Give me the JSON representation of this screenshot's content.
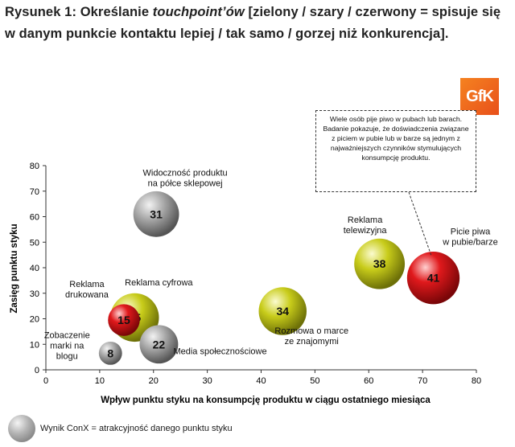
{
  "heading": {
    "prefix": "Rysunek 1: Określanie ",
    "italic": "touchpoint’ów",
    "suffix": " [zielony / szary / czerwony = spisuje się w danym punkcie kontaktu lepiej / tak samo / gorzej niż konkurencja]."
  },
  "logo": {
    "text": "GfK"
  },
  "callout": {
    "text": "Wiele osób pije piwo w pubach lub barach. Badanie pokazuje, że doświadczenia związane z piciem w pubie lub w barze są jednym z najważniejszych czynników stymulujących konsumpcję produktu."
  },
  "legend": {
    "text": "Wynik ConX = atrakcyjność danego punktu styku"
  },
  "colors": {
    "green": "#c8cc1a",
    "grey": "#8a8a8a",
    "red": "#e0191c"
  },
  "chart_data": {
    "type": "scatter",
    "xlabel": "Wpływ punktu styku na konsumpcję produktu w ciągu ostatniego miesiąca",
    "ylabel": "Zasięg punktu styku",
    "xlim": [
      0,
      80
    ],
    "ylim": [
      0,
      80
    ],
    "xticks": [
      "0",
      "10",
      "20",
      "30",
      "40",
      "50",
      "60",
      "70",
      "80"
    ],
    "yticks": [
      "0",
      "10",
      "20",
      "30",
      "40",
      "50",
      "60",
      "70",
      "80"
    ],
    "grid": false,
    "points": [
      {
        "label": "Widoczność produktu na półce sklepowej",
        "lines": [
          "Widoczność produktu",
          "na półce sklepowej"
        ],
        "x": 20.5,
        "y": 61,
        "conx": 31,
        "color": "grey"
      },
      {
        "label": "Reklama cyfrowa",
        "lines": [
          "Reklama cyfrowa"
        ],
        "x": 16.5,
        "y": 20.5,
        "conx": 35,
        "color": "green"
      },
      {
        "label": "Reklama drukowana",
        "lines": [
          "Reklama",
          "drukowana"
        ],
        "x": 14.5,
        "y": 19.5,
        "conx": 15,
        "color": "red"
      },
      {
        "label": "Zobaczenie marki na blogu",
        "lines": [
          "Zobaczenie",
          "marki na",
          "blogu"
        ],
        "x": 12,
        "y": 6.5,
        "conx": 8,
        "color": "grey"
      },
      {
        "label": "Media społecznościowe",
        "lines": [
          "Media społecznościowe"
        ],
        "x": 21,
        "y": 10,
        "conx": 22,
        "color": "grey"
      },
      {
        "label": "Rozmowa o marce ze znajomymi",
        "lines": [
          "Rozmowa o marce",
          "ze znajomymi"
        ],
        "x": 44,
        "y": 23,
        "conx": 34,
        "color": "green"
      },
      {
        "label": "Reklama telewizyjna",
        "lines": [
          "Reklama",
          "telewizyjna"
        ],
        "x": 62,
        "y": 41.5,
        "conx": 38,
        "color": "green"
      },
      {
        "label": "Picie piwa w pubie/barze",
        "lines": [
          "Picie piwa",
          "w pubie/barze"
        ],
        "x": 72,
        "y": 36,
        "conx": 41,
        "color": "red"
      }
    ]
  }
}
